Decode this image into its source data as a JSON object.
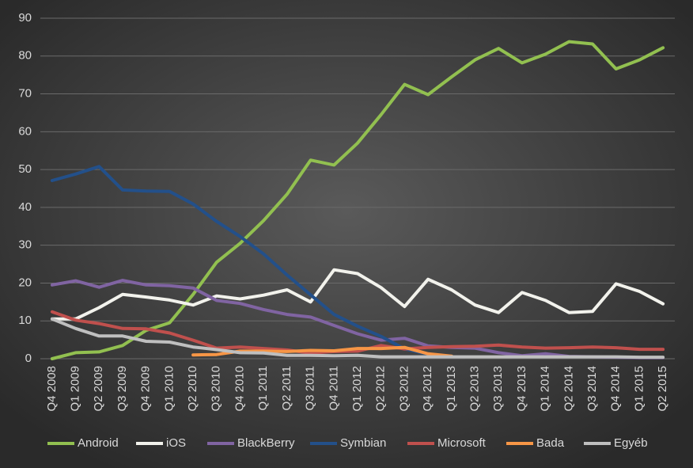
{
  "chart_data": {
    "type": "line",
    "categories": [
      "Q4 2008",
      "Q1 2009",
      "Q2 2009",
      "Q3 2009",
      "Q4 2009",
      "Q1 2010",
      "Q2 2010",
      "Q3 2010",
      "Q4 2010",
      "Q1 2011",
      "Q2 2011",
      "Q3 2011",
      "Q4 2011",
      "Q1 2012",
      "Q2 2012",
      "Q3 2012",
      "Q4 2012",
      "Q1 2013",
      "Q2 2013",
      "Q3 2013",
      "Q4 2013",
      "Q1 2014",
      "Q2 2014",
      "Q3 2014",
      "Q4 2014",
      "Q1 2015",
      "Q2 2015"
    ],
    "series": [
      {
        "name": "Android",
        "color": "#92c050",
        "values": [
          0,
          1.6,
          1.8,
          3.5,
          7.5,
          9.5,
          17,
          25.5,
          30.5,
          36.5,
          43.5,
          52.5,
          51.2,
          57,
          64.5,
          72.5,
          69.8,
          74.5,
          79,
          82,
          78.2,
          80.5,
          83.8,
          83.2,
          76.6,
          79,
          82.2
        ]
      },
      {
        "name": "iOS",
        "color": "#f2f2ec",
        "values": [
          10.5,
          10.5,
          13.5,
          17,
          16.3,
          15.5,
          14.2,
          16.6,
          15.8,
          16.8,
          18.2,
          15,
          23.5,
          22.5,
          18.8,
          13.8,
          21,
          18.2,
          14.2,
          12.2,
          17.5,
          15.4,
          12.2,
          12.5,
          19.8,
          17.8,
          14.5
        ]
      },
      {
        "name": "BlackBerry",
        "color": "#8064a2",
        "values": [
          19.5,
          20.6,
          18.9,
          20.7,
          19.5,
          19.3,
          18.7,
          15.4,
          14.6,
          13,
          11.7,
          11,
          8.8,
          6.6,
          4.9,
          5.4,
          3.4,
          3,
          2.8,
          1.6,
          0.8,
          1.3,
          0.6,
          0.5,
          0.4,
          0.3,
          0.3
        ]
      },
      {
        "name": "Symbian",
        "color": "#23508a",
        "values": [
          47.1,
          48.8,
          50.8,
          44.6,
          44.3,
          44.2,
          40.9,
          36.3,
          32.3,
          27.7,
          22.1,
          16.9,
          11.7,
          8.6,
          5.9,
          2.6,
          1.2,
          null,
          null,
          null,
          null,
          null,
          null,
          null,
          null,
          null,
          null
        ]
      },
      {
        "name": "Microsoft",
        "color": "#c0504d",
        "values": [
          12.4,
          10.2,
          9.3,
          8,
          7.9,
          6.8,
          4.9,
          2.8,
          3.1,
          2.7,
          2.3,
          1.5,
          1.9,
          2,
          3.5,
          2.6,
          3,
          3.2,
          3.3,
          3.6,
          3.1,
          2.8,
          2.9,
          3.1,
          2.9,
          2.5,
          2.5
        ]
      },
      {
        "name": "Bada",
        "color": "#f79646",
        "values": [
          null,
          null,
          null,
          null,
          null,
          null,
          1,
          1.1,
          2,
          2,
          1.9,
          2.2,
          2.1,
          2.7,
          2.7,
          3,
          1.3,
          0.7,
          null,
          null,
          null,
          null,
          null,
          null,
          null,
          null,
          null
        ]
      },
      {
        "name": "Egyéb",
        "color": "#bfbfbf",
        "values": [
          10.5,
          8,
          6,
          6,
          4.6,
          4.4,
          3.1,
          2.4,
          1.6,
          1.5,
          0.9,
          0.9,
          0.8,
          0.9,
          0.5,
          0.5,
          0.5,
          0.5,
          0.5,
          0.5,
          0.5,
          0.5,
          0.5,
          0.5,
          0.5,
          0.4,
          0.4
        ]
      }
    ],
    "ylim": [
      0,
      90
    ],
    "yticks": [
      0,
      10,
      20,
      30,
      40,
      50,
      60,
      70,
      80,
      90
    ],
    "grid": true,
    "legend": "bottom"
  }
}
